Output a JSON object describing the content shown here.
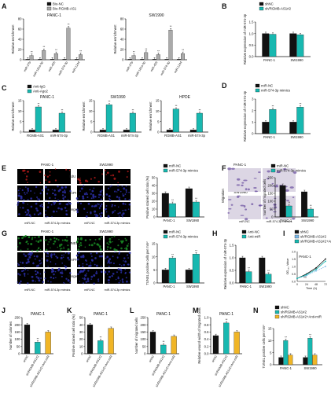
{
  "colors": {
    "black": "#111111",
    "grey": "#aaaaaa",
    "teal": "#18b8b0",
    "gold": "#f0b526",
    "micro_blue": "#2b2fa8",
    "micro_red": "#b21a1a",
    "micro_green": "#1a8a24",
    "well_bg": "#dcd6e4",
    "well_cell": "#6a4fa0"
  },
  "sig": "**",
  "pdpd": "##",
  "A": {
    "letter": "A",
    "legend": [
      "Bio-NC",
      "Bio-RGMB-AS1"
    ],
    "left": {
      "title": "PANC-1",
      "ylabel": "Relative enrichment",
      "cats": [
        "miR-27b",
        "miR-181a-3p",
        "miR-425",
        "miR-574-3p",
        "miR-1244"
      ],
      "ylim": [
        0,
        80
      ],
      "ticks": [
        "0",
        "20",
        "40",
        "60",
        "80"
      ],
      "series": [
        {
          "values": [
            1,
            1,
            1,
            1,
            1
          ]
        },
        {
          "values": [
            8,
            18,
            12,
            62,
            10
          ]
        }
      ]
    },
    "right": {
      "title": "SW1990",
      "ylabel": "Relative enrichment",
      "cats": [
        "miR-27b",
        "miR-181a-3p",
        "miR-425",
        "miR-574-3p",
        "miR-1244"
      ],
      "ylim": [
        0,
        80
      ],
      "ticks": [
        "0",
        "20",
        "40",
        "60",
        "80"
      ],
      "series": [
        {
          "values": [
            1,
            1,
            1,
            1,
            1
          ]
        },
        {
          "values": [
            8,
            14,
            10,
            58,
            12
          ]
        }
      ]
    }
  },
  "B": {
    "letter": "B",
    "legend": [
      "shNC",
      "sh/RGMB-AS1#2"
    ],
    "ylabel": "Relative expression of miR-574-3p",
    "cats": [
      "PANC-1",
      "SW1990"
    ],
    "ylim": [
      0,
      1.5
    ],
    "ticks": [
      "0.0",
      "0.5",
      "1.0",
      "1.5"
    ],
    "series": [
      {
        "values": [
          1.0,
          1.0
        ]
      },
      {
        "values": [
          0.97,
          0.95
        ]
      }
    ]
  },
  "C": {
    "letter": "C",
    "legend": [
      "Anti-IgG",
      "Anti-Ago2"
    ],
    "panels": [
      {
        "title": "PANC-1",
        "ylabel": "Relative enrichment",
        "cats": [
          "RGMB-AS1",
          "miR-574-3p"
        ],
        "ylim": [
          0,
          15
        ],
        "ticks": [
          "0",
          "5",
          "10",
          "15"
        ],
        "series": [
          {
            "values": [
              1,
              1
            ]
          },
          {
            "values": [
              12,
              9
            ]
          }
        ]
      },
      {
        "title": "SW1990",
        "ylabel": "Relative enrichment",
        "cats": [
          "RGMB-AS1",
          "miR-574-3p"
        ],
        "ylim": [
          0,
          15
        ],
        "ticks": [
          "0",
          "5",
          "10",
          "15"
        ],
        "series": [
          {
            "values": [
              1,
              1
            ]
          },
          {
            "values": [
              13,
              9
            ]
          }
        ]
      },
      {
        "title": "HPDE",
        "ylabel": "Relative enrichment",
        "cats": [
          "RGMB-AS1",
          "miR-574-3p"
        ],
        "ylim": [
          0,
          15
        ],
        "ticks": [
          "0",
          "5",
          "10",
          "15"
        ],
        "series": [
          {
            "values": [
              1,
              1
            ]
          },
          {
            "values": [
              11,
              9
            ]
          }
        ]
      }
    ]
  },
  "D": {
    "letter": "D",
    "legend": [
      "miR-NC",
      "miR-574-3p mimics"
    ],
    "ylabel": "Relative expression of miR-574-3p",
    "cats": [
      "PANC-1",
      "SW1990"
    ],
    "ylim": [
      0,
      3
    ],
    "ticks": [
      "0",
      "1",
      "2",
      "3"
    ],
    "series": [
      {
        "values": [
          1,
          1
        ]
      },
      {
        "values": [
          2.1,
          2.3
        ]
      }
    ]
  },
  "E": {
    "letter": "E",
    "cols": [
      "PANC-1",
      "SW1990"
    ],
    "rows": [
      "EdU",
      "DAPI",
      "Merge"
    ],
    "xlabels": [
      "miR-NC",
      "miR-574-3p mimics",
      "miR-NC",
      "miR-574-3p mimics"
    ],
    "chart": {
      "legend": [
        "miR-NC",
        "miR-574-3p mimics"
      ],
      "ylabel": "Positive stained cell ratio (%)",
      "cats": [
        "PANC-1",
        "SW1990"
      ],
      "ylim": [
        0,
        50
      ],
      "ticks": [
        "0",
        "10",
        "20",
        "30",
        "40",
        "50"
      ],
      "series": [
        {
          "values": [
            30,
            36
          ]
        },
        {
          "values": [
            17,
            19
          ]
        }
      ]
    }
  },
  "F": {
    "letter": "F",
    "cols": [
      "PANC-1",
      "SW1990"
    ],
    "row_label": "Migration",
    "xlabels": [
      "miR-NC",
      "miR-574-3p mimics",
      "miR-NC",
      "miR-574-3p mimics"
    ],
    "chart": {
      "legend": [
        "miR-NC",
        "miR-574-3p mimics"
      ],
      "ylabel": "Number of migrated cells",
      "cats": [
        "PANC-1",
        "SW1990"
      ],
      "ylim": [
        0,
        250
      ],
      "ticks": [
        "0",
        "50",
        "100",
        "150",
        "200",
        "250"
      ],
      "series": [
        {
          "values": [
            200,
            160
          ]
        },
        {
          "values": [
            70,
            50
          ]
        }
      ]
    }
  },
  "G": {
    "letter": "G",
    "cols": [
      "PANC-1",
      "SW1990"
    ],
    "rows": [
      "TUNEL",
      "DAPI",
      "Merge"
    ],
    "xlabels": [
      "miR-NC",
      "miR-574-3p mimics",
      "miR-NC",
      "miR-574-3p mimics"
    ],
    "chart": {
      "legend": [
        "miR-NC",
        "miR-574-3p mimics"
      ],
      "ylabel": "TUNEL positive cells per mm²",
      "cats": [
        "PANC-1",
        "SW1990"
      ],
      "ylim": [
        0,
        15
      ],
      "ticks": [
        "0",
        "5",
        "10",
        "15"
      ],
      "series": [
        {
          "values": [
            5,
            5
          ]
        },
        {
          "values": [
            9.5,
            11
          ]
        }
      ]
    }
  },
  "H": {
    "letter": "H",
    "legend": [
      "Anti-NC",
      "Anti-miR"
    ],
    "ylabel": "Relative expression of miR-574-3p",
    "cats": [
      "PANC-1",
      "SW1990"
    ],
    "ylim": [
      0,
      1.5
    ],
    "ticks": [
      "0.0",
      "0.5",
      "1.0",
      "1.5"
    ],
    "series": [
      {
        "values": [
          1.0,
          1.0
        ]
      },
      {
        "values": [
          0.45,
          0.35
        ]
      }
    ]
  },
  "I": {
    "letter": "I",
    "legend": [
      "shNC",
      "sh/RGMB-AS1#2",
      "sh/RGMB-AS1#2+Anti-miR"
    ],
    "title": "PANC-1",
    "ylabel": "OD₄₅₀ Value",
    "xlabel": "Time (h)",
    "x": [
      0,
      24,
      48,
      72
    ],
    "xticks": [
      "0",
      "24",
      "48",
      "72"
    ],
    "ylim": [
      0,
      2
    ],
    "ticks": [
      "0.0",
      "0.5",
      "1.0",
      "1.5",
      "2.0"
    ],
    "ns": "ns",
    "series": [
      {
        "values": [
          0.2,
          0.5,
          0.9,
          1.5
        ]
      },
      {
        "values": [
          0.2,
          0.4,
          0.7,
          1.0
        ]
      },
      {
        "values": [
          0.2,
          0.45,
          0.8,
          1.35
        ]
      }
    ]
  },
  "bottom_cats": [
    "shNC",
    "sh/RGMB-AS1#2",
    "sh/RGMB-AS1#2+Anti-miR"
  ],
  "J": {
    "letter": "J",
    "title": "PANC-1",
    "ylabel": "Number of colonies",
    "ylim": [
      0,
      250
    ],
    "ticks": [
      "0",
      "50",
      "100",
      "150",
      "200",
      "250"
    ],
    "values": [
      200,
      80,
      150
    ]
  },
  "K": {
    "letter": "K",
    "title": "PANC-1",
    "ylabel": "Positive stained cell ratio (%)",
    "ylim": [
      0,
      50
    ],
    "ticks": [
      "0",
      "10",
      "20",
      "30",
      "40",
      "50"
    ],
    "values": [
      40,
      18,
      35
    ]
  },
  "L": {
    "letter": "L",
    "title": "PANC-1",
    "ylabel": "Number of migrated cells",
    "ylim": [
      0,
      250
    ],
    "ticks": [
      "0",
      "50",
      "100",
      "150",
      "200",
      "250"
    ],
    "values": [
      150,
      60,
      120
    ]
  },
  "M": {
    "letter": "M",
    "title": "PANC-1",
    "ylabel": "Relative wound width of migrated cells",
    "ylim": [
      0,
      1.0
    ],
    "ticks": [
      "0.0",
      "0.2",
      "0.4",
      "0.6",
      "0.8",
      "1.0"
    ],
    "values": [
      0.5,
      0.85,
      0.6
    ]
  },
  "N": {
    "letter": "N",
    "legend": [
      "shNC",
      "sh/RGMB-AS1#2",
      "sh/RGMB-AS1#2+Anti-miR"
    ],
    "ylabel": "TUNEL positive cells per mm²",
    "cats": [
      "PANC-1",
      "SW1990"
    ],
    "ylim": [
      0,
      15
    ],
    "ticks": [
      "0",
      "5",
      "10",
      "15"
    ],
    "series": [
      {
        "values": [
          3,
          3
        ]
      },
      {
        "values": [
          10,
          11
        ]
      },
      {
        "values": [
          4,
          4
        ]
      }
    ]
  }
}
